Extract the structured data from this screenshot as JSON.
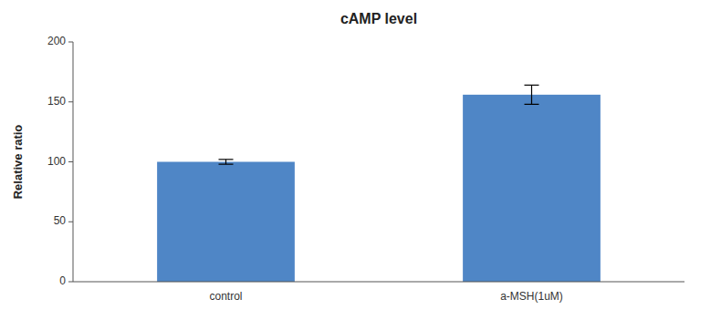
{
  "chart_data": {
    "type": "bar",
    "title": "cAMP level",
    "ylabel": "Relative ratio",
    "categories": [
      "control",
      "a-MSH(1uM)"
    ],
    "values": [
      100,
      156
    ],
    "errors": [
      2,
      8
    ],
    "color": "#4f86c6",
    "ylim": [
      0,
      200
    ],
    "yticks": [
      0,
      50,
      100,
      150,
      200
    ],
    "grid": false
  }
}
